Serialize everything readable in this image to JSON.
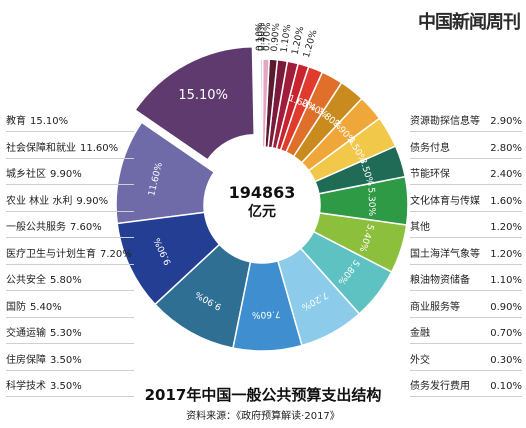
{
  "masthead": "中国新闻周刊",
  "chart_data": {
    "type": "pie",
    "title": "2017年中国一般公共预算支出结构",
    "source": "资料来源：《政府预算解读·2017》",
    "center_total": "194863",
    "center_unit": "亿元",
    "slices": [
      {
        "name": "教育",
        "value": 15.1,
        "label": "15.10%",
        "color": "#5e3a6e"
      },
      {
        "name": "社会保障和就业",
        "value": 11.6,
        "label": "11.60%",
        "color": "#6f6aa8"
      },
      {
        "name": "城乡社区",
        "value": 9.9,
        "label": "9.90%",
        "color": "#243e94"
      },
      {
        "name": "农业 林业 水利",
        "value": 9.9,
        "label": "9.90%",
        "color": "#2f6f94"
      },
      {
        "name": "一般公共服务",
        "value": 7.6,
        "label": "7.60%",
        "color": "#3f8fd0"
      },
      {
        "name": "医疗卫生与计划生育",
        "value": 7.2,
        "label": "7.20%",
        "color": "#8ccbe9"
      },
      {
        "name": "公共安全",
        "value": 5.8,
        "label": "5.80%",
        "color": "#5fc2c2"
      },
      {
        "name": "国防",
        "value": 5.4,
        "label": "5.40%",
        "color": "#8cbf3c"
      },
      {
        "name": "交通运输",
        "value": 5.3,
        "label": "5.30%",
        "color": "#2f9a45"
      },
      {
        "name": "住房保障",
        "value": 3.5,
        "label": "3.50%",
        "color": "#1f6b55"
      },
      {
        "name": "科学技术",
        "value": 3.5,
        "label": "3.50%",
        "color": "#f2c84b"
      },
      {
        "name": "资源勘探信息等",
        "value": 2.9,
        "label": "2.90%",
        "color": "#f0a73a"
      },
      {
        "name": "债务付息",
        "value": 2.8,
        "label": "2.80%",
        "color": "#c98b1d"
      },
      {
        "name": "节能环保",
        "value": 2.4,
        "label": "2.40%",
        "color": "#e06f2a"
      },
      {
        "name": "文化体育与传媒",
        "value": 1.6,
        "label": "1.60%",
        "color": "#e03b2d"
      },
      {
        "name": "其他",
        "value": 1.2,
        "label": "1.20%",
        "color": "#c8232f"
      },
      {
        "name": "国土海洋气象等",
        "value": 1.2,
        "label": "1.20%",
        "color": "#a01e3a"
      },
      {
        "name": "粮油物资储备",
        "value": 1.1,
        "label": "1.10%",
        "color": "#7c1a3c"
      },
      {
        "name": "商业服务等",
        "value": 0.9,
        "label": "0.90%",
        "color": "#5a1a30"
      },
      {
        "name": "金融",
        "value": 0.7,
        "label": "0.70%",
        "color": "#e6a6c2"
      },
      {
        "name": "外交",
        "value": 0.3,
        "label": "0.30%",
        "color": "#d9d2e0"
      },
      {
        "name": "债务发行费用",
        "value": 0.1,
        "label": "0.10%",
        "color": "#b7a6c6"
      }
    ],
    "legend_left": [
      {
        "name": "教育",
        "value": "15.10%"
      },
      {
        "name": "社会保障和就业",
        "value": "11.60%"
      },
      {
        "name": "城乡社区",
        "value": "9.90%"
      },
      {
        "name": "农业 林业 水利",
        "value": "9.90%"
      },
      {
        "name": "一般公共服务",
        "value": "7.60%"
      },
      {
        "name": "医疗卫生与计划生育",
        "value": "7.20%"
      },
      {
        "name": "公共安全",
        "value": "5.80%"
      },
      {
        "name": "国防",
        "value": "5.40%"
      },
      {
        "name": "交通运输",
        "value": "5.30%"
      },
      {
        "name": "住房保障",
        "value": "3.50%"
      },
      {
        "name": "科学技术",
        "value": "3.50%"
      }
    ],
    "legend_right": [
      {
        "name": "资源勘探信息等",
        "value": "2.90%"
      },
      {
        "name": "债务付息",
        "value": "2.80%"
      },
      {
        "name": "节能环保",
        "value": "2.40%"
      },
      {
        "name": "文化体育与传媒",
        "value": "1.60%"
      },
      {
        "name": "其他",
        "value": "1.20%"
      },
      {
        "name": "国土海洋气象等",
        "value": "1.20%"
      },
      {
        "name": "粮油物资储备",
        "value": "1.10%"
      },
      {
        "name": "商业服务等",
        "value": "0.90%"
      },
      {
        "name": "金融",
        "value": "0.70%"
      },
      {
        "name": "外交",
        "value": "0.30%"
      },
      {
        "name": "债务发行费用",
        "value": "0.10%"
      }
    ]
  }
}
